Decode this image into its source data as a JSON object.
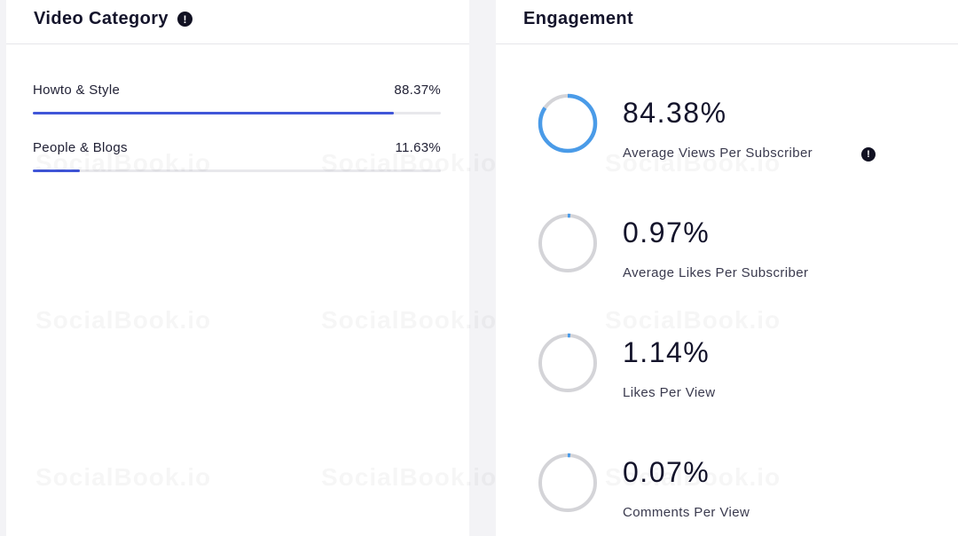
{
  "video_category": {
    "title": "Video Category",
    "items": [
      {
        "label": "Howto & Style",
        "percent_text": "88.37%",
        "percent": 88.37
      },
      {
        "label": "People & Blogs",
        "percent_text": "11.63%",
        "percent": 11.63
      }
    ]
  },
  "engagement": {
    "title": "Engagement",
    "metrics": [
      {
        "value": "84.38%",
        "label": "Average Views Per Subscriber",
        "percent": 84.38,
        "has_info": true
      },
      {
        "value": "0.97%",
        "label": "Average Likes Per Subscriber",
        "percent": 0.97,
        "has_info": false
      },
      {
        "value": "1.14%",
        "label": "Likes Per View",
        "percent": 1.14,
        "has_info": false
      },
      {
        "value": "0.07%",
        "label": "Comments Per View",
        "percent": 0.07,
        "has_info": false
      }
    ]
  },
  "watermark": "SocialBook.io",
  "colors": {
    "ring_fill": "#4a9be8",
    "ring_track": "#d4d4d8",
    "bar_fill": "#4056d8"
  }
}
